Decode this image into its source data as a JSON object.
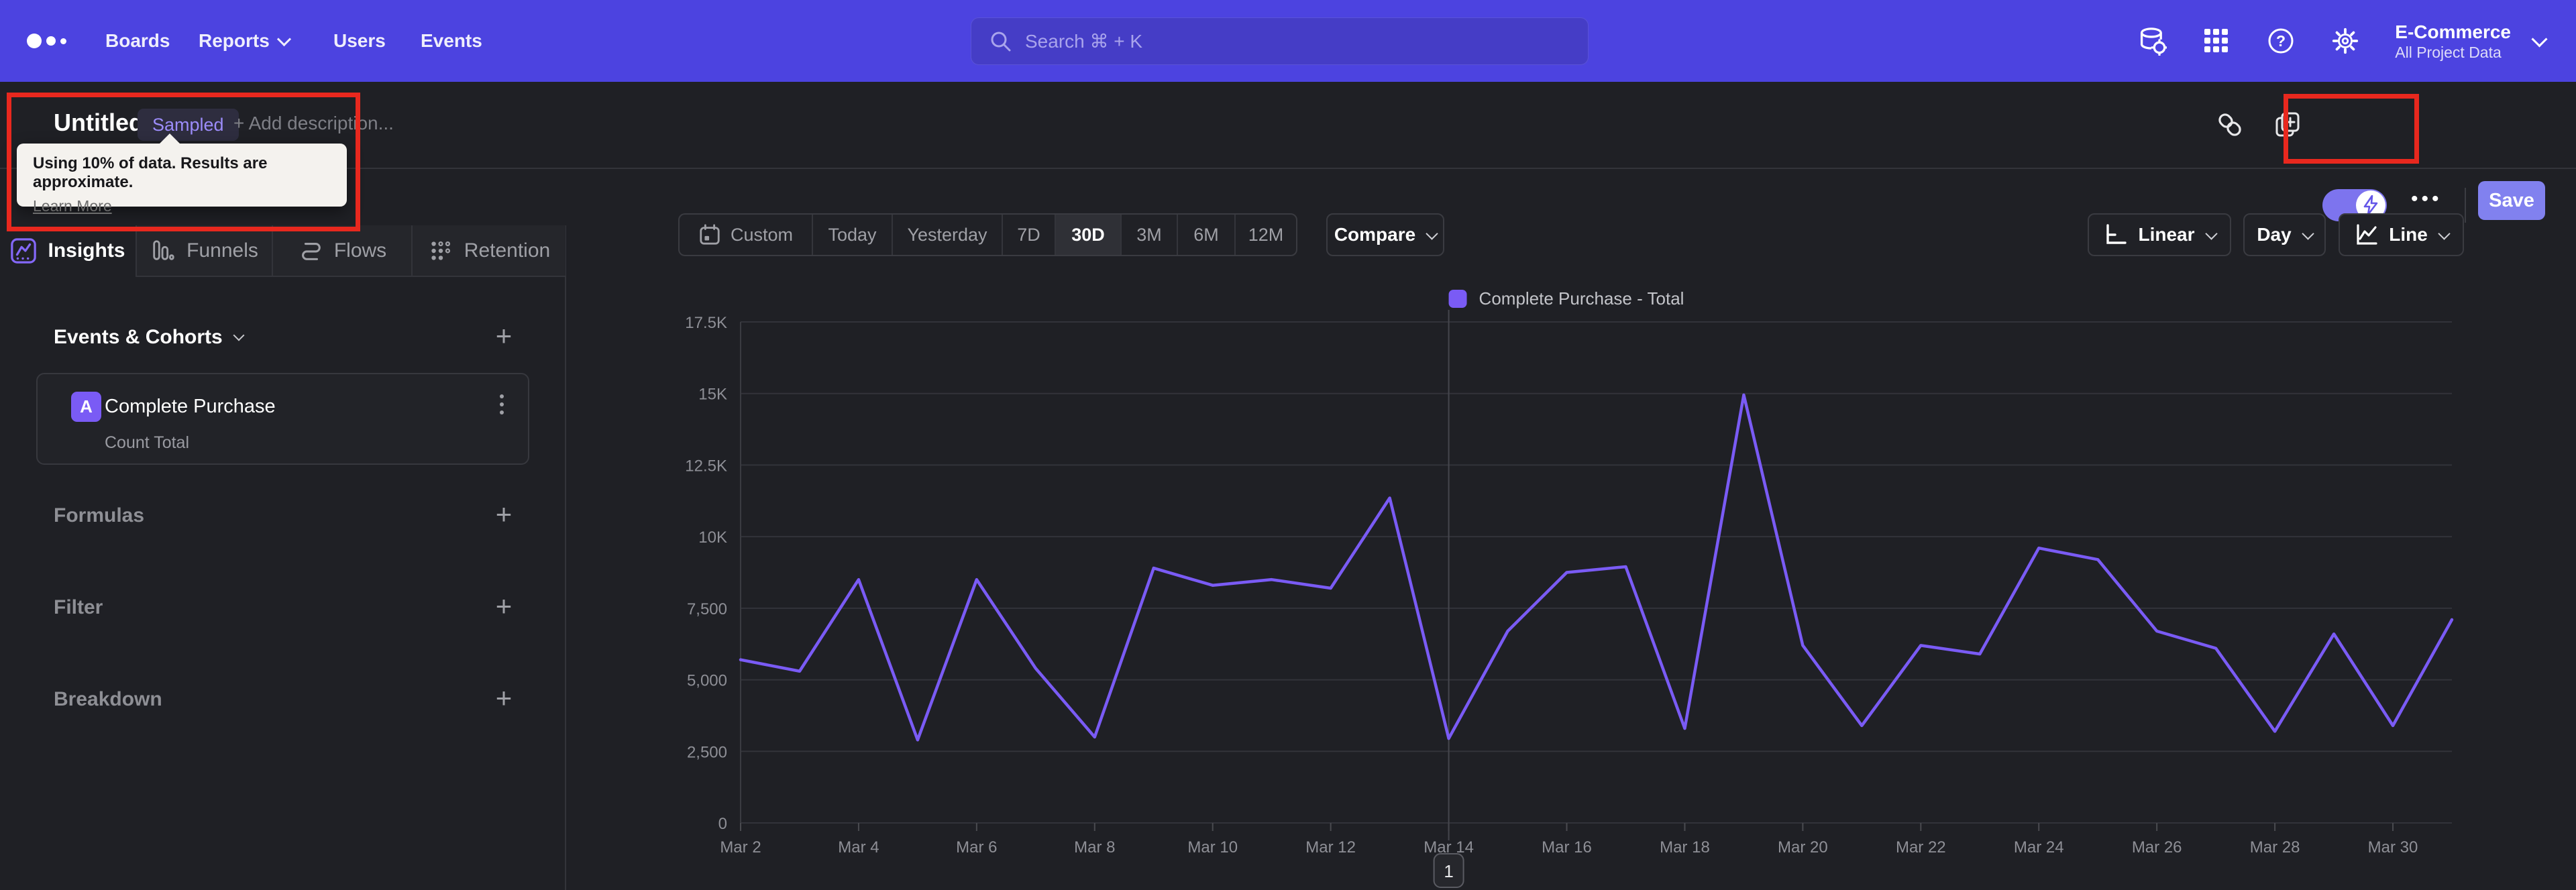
{
  "nav": {
    "items": [
      "Boards",
      "Reports",
      "Users",
      "Events"
    ],
    "search_placeholder": "Search  ⌘ + K",
    "project_name": "E-Commerce",
    "project_scope": "All Project Data"
  },
  "titlebar": {
    "title": "Untitled",
    "badge": "Sampled",
    "add_description": "+ Add description...",
    "menu_dots": "•••",
    "save_label": "Save"
  },
  "tooltip": {
    "text": "Using 10% of data. Results are approximate.",
    "link": "Learn More"
  },
  "sidebar": {
    "tabs": [
      {
        "label": "Insights"
      },
      {
        "label": "Funnels"
      },
      {
        "label": "Flows"
      },
      {
        "label": "Retention"
      }
    ],
    "events_header": "Events & Cohorts",
    "event_card": {
      "letter": "A",
      "name": "Complete Purchase",
      "metric": "Count Total"
    },
    "sections": [
      {
        "label": "Formulas"
      },
      {
        "label": "Filter"
      },
      {
        "label": "Breakdown"
      }
    ]
  },
  "toolbar": {
    "ranges": [
      "Custom",
      "Today",
      "Yesterday",
      "7D",
      "30D",
      "3M",
      "6M",
      "12M"
    ],
    "active_range": "30D",
    "compare_label": "Compare",
    "scale_label": "Linear",
    "interval_label": "Day",
    "chart_type_label": "Line"
  },
  "chart_data": {
    "type": "line",
    "title": "Complete Purchase - Total",
    "xlabel": "",
    "ylabel": "",
    "ylim": [
      0,
      17500
    ],
    "grid": "horizontal",
    "legend_position": "top",
    "x_label_every": 2,
    "x": [
      "Mar 2",
      "Mar 3",
      "Mar 4",
      "Mar 5",
      "Mar 6",
      "Mar 7",
      "Mar 8",
      "Mar 9",
      "Mar 10",
      "Mar 11",
      "Mar 12",
      "Mar 13",
      "Mar 14",
      "Mar 15",
      "Mar 16",
      "Mar 17",
      "Mar 18",
      "Mar 19",
      "Mar 20",
      "Mar 21",
      "Mar 22",
      "Mar 23",
      "Mar 24",
      "Mar 25",
      "Mar 26",
      "Mar 27",
      "Mar 28",
      "Mar 29",
      "Mar 30",
      "Mar 31"
    ],
    "series": [
      {
        "name": "Complete Purchase - Total",
        "color": "#7a5bf5",
        "values": [
          5700,
          5300,
          8500,
          2900,
          8500,
          5400,
          3000,
          8900,
          8300,
          8500,
          8200,
          11350,
          2950,
          6700,
          8750,
          8950,
          3300,
          14950,
          6200,
          3400,
          6200,
          5900,
          9600,
          9200,
          6700,
          6100,
          3200,
          6600,
          3400,
          7100
        ]
      }
    ],
    "y_ticks": [
      {
        "v": 0,
        "label": "0"
      },
      {
        "v": 2500,
        "label": "2,500"
      },
      {
        "v": 5000,
        "label": "5,000"
      },
      {
        "v": 7500,
        "label": "7,500"
      },
      {
        "v": 10000,
        "label": "10K"
      },
      {
        "v": 12500,
        "label": "12.5K"
      },
      {
        "v": 15000,
        "label": "15K"
      },
      {
        "v": 17500,
        "label": "17.5K"
      }
    ],
    "annotations": [
      {
        "index": 12,
        "x_label": "Mar 14",
        "label": "1"
      }
    ]
  }
}
